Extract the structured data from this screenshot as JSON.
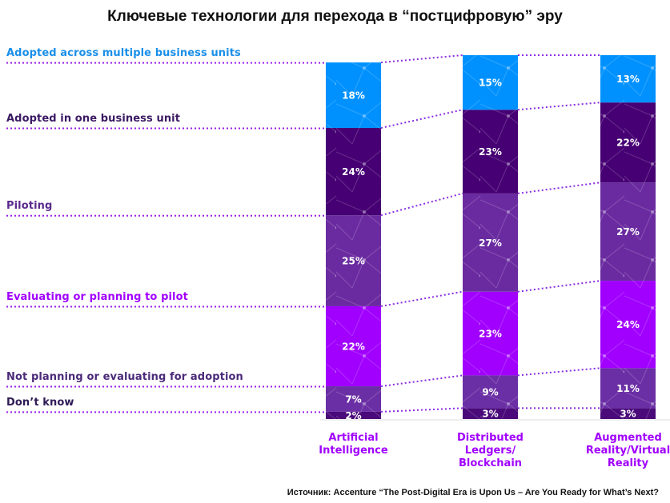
{
  "chart_data": {
    "type": "bar",
    "stacked": true,
    "title": "Ключевые технологии для перехода в “постцифровую” эру",
    "categories": [
      "Artificial Intelligence",
      "Distributed Ledgers/ Blockchain",
      "Augmented Reality/Virtual Reality"
    ],
    "series": [
      {
        "name": "Adopted across multiple business units",
        "color": "#0091ff",
        "labelColor": "#1a8fe8",
        "values": [
          18,
          15,
          13
        ]
      },
      {
        "name": "Adopted in one business unit",
        "color": "#460073",
        "labelColor": "#3b1a63",
        "values": [
          24,
          23,
          22
        ]
      },
      {
        "name": "Piloting",
        "color": "#6a2ba0",
        "labelColor": "#5a2a8c",
        "values": [
          25,
          27,
          27
        ]
      },
      {
        "name": "Evaluating or planning to pilot",
        "color": "#a100ff",
        "labelColor": "#a100ff",
        "values": [
          22,
          23,
          24
        ]
      },
      {
        "name": "Not planning or evaluating for adoption",
        "color": "#6b2fa5",
        "labelColor": "#4b2a7a",
        "values": [
          7,
          9,
          11
        ]
      },
      {
        "name": "Don’t know",
        "color": "#4a0a7a",
        "labelColor": "#2e1a55",
        "values": [
          2,
          3,
          3
        ]
      }
    ],
    "value_suffix": "%",
    "xlabel": "",
    "ylabel": "",
    "legend": "left",
    "grid": false,
    "source": "Источник: Accenture “The Post-Digital Era is Upon Us – Are You Ready for What’s Next?"
  }
}
